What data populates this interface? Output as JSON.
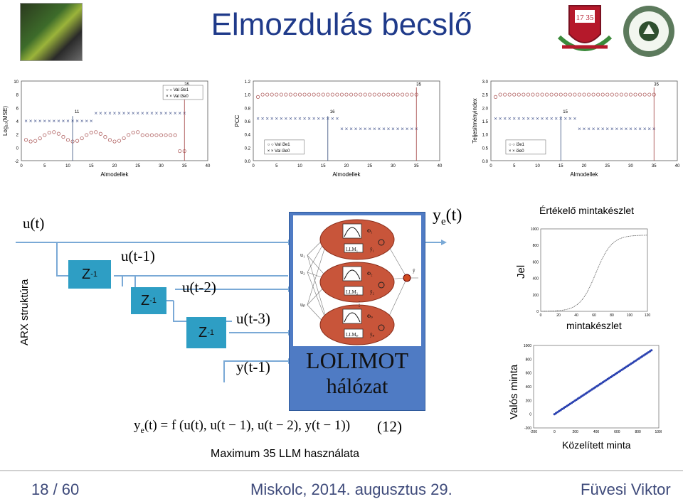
{
  "title": "Elmozdulás becslő",
  "plots_top": [
    {
      "xlabel": "Almodellek",
      "ylabel": "Log₁₀(MSE)",
      "legend": [
        "Val i3e1",
        "Val i3e0"
      ],
      "annots": [
        "11",
        "35"
      ],
      "yticks": [
        "10",
        "8",
        "6",
        "4",
        "2",
        "0",
        "-2"
      ],
      "xticks": [
        "0",
        "5",
        "10",
        "15",
        "20",
        "25",
        "30",
        "35",
        "40"
      ]
    },
    {
      "xlabel": "Almodellek",
      "ylabel": "PCC",
      "legend": [
        "Val i3e1",
        "Val i3e0"
      ],
      "annots": [
        "16",
        "35"
      ],
      "yticks": [
        "1.2",
        "1.0",
        "0.8",
        "0.6",
        "0.4",
        "0.2",
        "0.0"
      ],
      "xticks": [
        "0",
        "5",
        "10",
        "15",
        "20",
        "25",
        "30",
        "35",
        "40"
      ]
    },
    {
      "xlabel": "Almodellek",
      "ylabel": "Teljesítményindex",
      "legend": [
        "i3e1",
        "i3e0"
      ],
      "annots": [
        "15",
        "35"
      ],
      "yticks": [
        "3.0",
        "2.5",
        "2.0",
        "1.5",
        "1.0",
        "0.5",
        "0.0"
      ],
      "xticks": [
        "0",
        "5",
        "10",
        "15",
        "20",
        "25",
        "30",
        "35",
        "40"
      ]
    }
  ],
  "arx": {
    "side_label": "ARX struktúra",
    "u_t": "u(t)",
    "u_t1": "u(t-1)",
    "u_t2": "u(t-2)",
    "u_t3": "u(t-3)",
    "y_t1": "y(t-1)",
    "z_label": "Z",
    "z_exp": "-1",
    "ye_label": "y",
    "ye_sub": "e",
    "ye_arg": "(t)",
    "lolimot": "LOLIMOT",
    "halozat": "hálózat",
    "formula_lhs": "y",
    "formula_sub": "e",
    "formula_rest": "(t) = f (u(t), u(t − 1), u(t − 2), y(t − 1))",
    "eq_num": "(12)",
    "caption": "Maximum 35 LLM használata"
  },
  "net_labels": {
    "llm1": "LLM₁",
    "llm2": "LLM₂",
    "llmp": "LLMₚ",
    "phi1": "Φ₁",
    "phi2": "Φ₂",
    "phip": "Φₚ",
    "y1": "ŷ₁",
    "y2": "ŷ₂",
    "yp": "ŷₚ",
    "u1": "u₁",
    "u2": "u₂",
    "up": "uₚ",
    "yout": "ŷ"
  },
  "right_plots": {
    "top_title": "Értékelő mintakészlet",
    "top_ylabel": "Jel",
    "top_caption": "mintakészlet",
    "top_yticks": [
      "1000",
      "800",
      "600",
      "400",
      "200",
      "0"
    ],
    "top_xticks": [
      "0",
      "20",
      "40",
      "60",
      "80",
      "100",
      "120"
    ],
    "bottom_ylabel": "Valós minta",
    "bottom_caption": "Közelített minta",
    "bottom_yticks": [
      "1000",
      "800",
      "600",
      "400",
      "200",
      "0",
      "-200"
    ],
    "bottom_xticks": [
      "-200",
      "0",
      "200",
      "400",
      "600",
      "800",
      "1000"
    ]
  },
  "footer": {
    "page": "18 / 60",
    "place": "Miskolc, 2014. augusztus 29.",
    "author": "Füvesi Viktor"
  }
}
